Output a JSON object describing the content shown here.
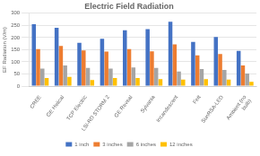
{
  "chart_data": {
    "type": "bar",
    "title": "Electric Field Radiation",
    "ylabel": "EF Radiation (V/m)",
    "categories": [
      "CREE",
      "GE Helical",
      "TCP Electric",
      "LSI-RD STORM 2",
      "GE Reveal",
      "Sylvania",
      "Incandescent",
      "Feit",
      "SunRSA-LED",
      "Ambient (no\nbulb)"
    ],
    "series": [
      {
        "name": "1 inch",
        "color": "#4472c4",
        "values": [
          255,
          240,
          178,
          195,
          230,
          235,
          265,
          182,
          202,
          145
        ]
      },
      {
        "name": "3 inches",
        "color": "#ed7d31",
        "values": [
          152,
          165,
          147,
          142,
          152,
          143,
          172,
          127,
          132,
          85
        ]
      },
      {
        "name": "6 inches",
        "color": "#a5a5a5",
        "values": [
          72,
          85,
          75,
          72,
          77,
          75,
          60,
          70,
          67,
          52
        ]
      },
      {
        "name": "12 inches",
        "color": "#ffc000",
        "values": [
          33,
          38,
          25,
          33,
          33,
          29,
          27,
          29,
          27,
          18
        ]
      }
    ],
    "ylim": [
      0,
      300
    ],
    "yticks": [
      0,
      50,
      100,
      150,
      200,
      250,
      300
    ],
    "grid": true,
    "legend": "bottom"
  }
}
